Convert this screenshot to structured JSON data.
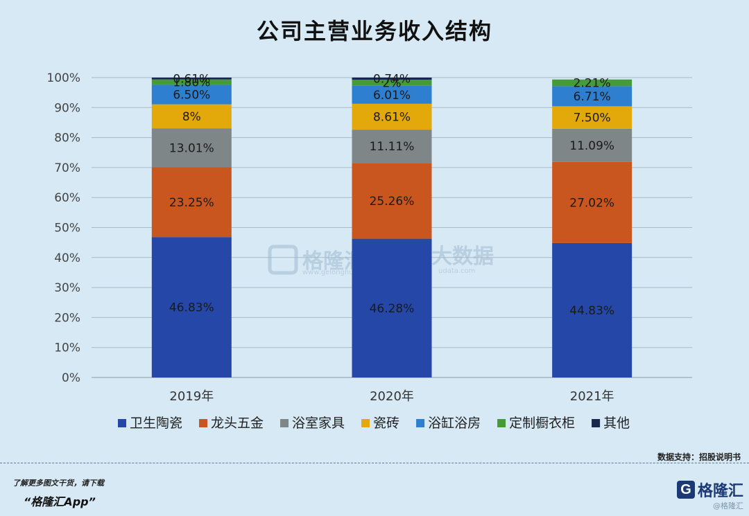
{
  "chart_data": {
    "type": "bar",
    "stacked": true,
    "title": "公司主营业务收入结构",
    "categories": [
      "2019年",
      "2020年",
      "2021年"
    ],
    "ylim": [
      0,
      100
    ],
    "yticks": [
      "0%",
      "10%",
      "20%",
      "30%",
      "40%",
      "50%",
      "60%",
      "70%",
      "80%",
      "90%",
      "100%"
    ],
    "grid": true,
    "legend_position": "bottom",
    "series": [
      {
        "name": "卫生陶瓷",
        "color": "#2548a8",
        "values": [
          46.83,
          46.28,
          44.83
        ],
        "labels": [
          "46.83%",
          "46.28%",
          "44.83%"
        ]
      },
      {
        "name": "龙头五金",
        "color": "#c9561e",
        "values": [
          23.25,
          25.26,
          27.02
        ],
        "labels": [
          "23.25%",
          "25.26%",
          "27.02%"
        ]
      },
      {
        "name": "浴室家具",
        "color": "#7f8687",
        "values": [
          13.01,
          11.11,
          11.09
        ],
        "labels": [
          "13.01%",
          "11.11%",
          "11.09%"
        ]
      },
      {
        "name": "瓷砖",
        "color": "#e3a90a",
        "values": [
          8,
          8.61,
          7.5
        ],
        "labels": [
          "8%",
          "8.61%",
          "7.50%"
        ]
      },
      {
        "name": "浴缸浴房",
        "color": "#2f7fd0",
        "values": [
          6.5,
          6.01,
          6.71
        ],
        "labels": [
          "6.50%",
          "6.01%",
          "6.71%"
        ]
      },
      {
        "name": "定制橱衣柜",
        "color": "#459c35",
        "values": [
          1.8,
          2.0,
          2.21
        ],
        "labels": [
          "1.80%",
          "2%",
          "2.21%"
        ]
      },
      {
        "name": "其他",
        "color": "#1a2550",
        "values": [
          0.61,
          0.74,
          0
        ],
        "labels": [
          "0.61%",
          "0.74%",
          ""
        ]
      }
    ]
  },
  "watermark": {
    "brand": "格隆汇",
    "brand_sub": "www.gelonghui.com",
    "tail": "大数据",
    "tail_sub": "udata.com"
  },
  "footer": {
    "source": "数据支持：招股说明书",
    "promo": "了解更多图文干货，请下载",
    "app": "“格隆汇App”",
    "brand_icon": "G",
    "brand_name": "格隆汇",
    "brand_sub": "@格隆汇"
  }
}
